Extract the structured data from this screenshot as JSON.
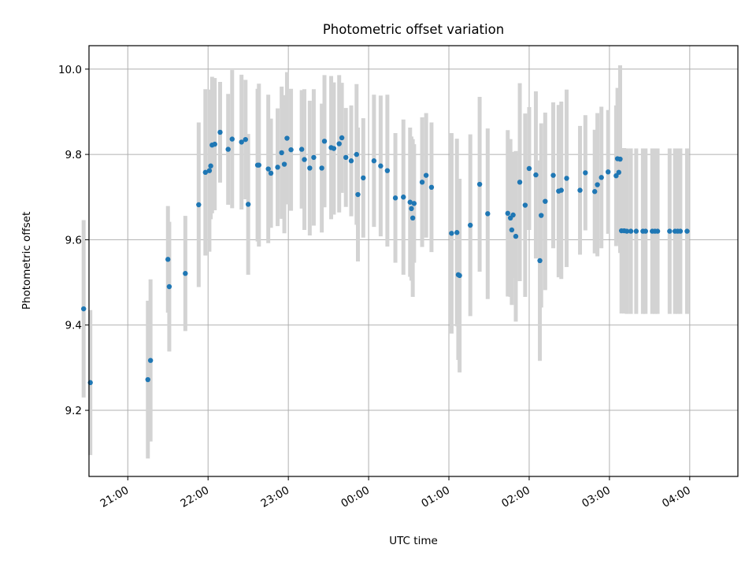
{
  "chart_data": {
    "type": "scatter",
    "title": "Photometric offset variation",
    "xlabel": "UTC time",
    "ylabel": "Photometric offset",
    "xlim": [
      "20:31",
      "04:36"
    ],
    "ylim": [
      9.045,
      10.055
    ],
    "xticks": [
      "21:00",
      "22:00",
      "23:00",
      "00:00",
      "01:00",
      "02:00",
      "03:00",
      "04:00"
    ],
    "yticks": [
      9.2,
      9.4,
      9.6,
      9.8,
      10.0
    ],
    "ytick_labels": [
      "9.2",
      "9.4",
      "9.6",
      "9.8",
      "10.0"
    ],
    "grid": true,
    "colors": {
      "point": "#1f77b4",
      "errorbar": "#d3d3d3",
      "grid": "#b0b0b0"
    },
    "series": [
      {
        "x": [
          "20:27",
          "20:32",
          "21:15",
          "21:17",
          "21:30",
          "21:31",
          "21:43",
          "21:53",
          "21:58",
          "22:01",
          "22:02",
          "22:03",
          "22:05",
          "22:09",
          "22:15",
          "22:18",
          "22:25",
          "22:28",
          "22:30",
          "22:37",
          "22:38",
          "22:45",
          "22:47",
          "22:52",
          "22:55",
          "22:57",
          "22:59",
          "23:02",
          "23:10",
          "23:12",
          "23:16",
          "23:19",
          "23:25",
          "23:27",
          "23:32",
          "23:34",
          "23:38",
          "23:40",
          "23:43",
          "23:47",
          "23:51",
          "23:52",
          "23:56",
          "00:04",
          "00:09",
          "00:14",
          "00:20",
          "00:26",
          "00:31",
          "00:32",
          "00:33",
          "00:34",
          "00:40",
          "00:43",
          "00:47",
          "01:02",
          "01:06",
          "01:07",
          "01:08",
          "01:16",
          "01:23",
          "01:29",
          "01:44",
          "01:46",
          "01:47",
          "01:48",
          "01:50",
          "01:53",
          "01:57",
          "02:00",
          "02:05",
          "02:08",
          "02:09",
          "02:12",
          "02:18",
          "02:22",
          "02:24",
          "02:28",
          "02:38",
          "02:42",
          "02:49",
          "02:51",
          "02:54",
          "02:59",
          "03:05",
          "03:06",
          "03:07",
          "03:08",
          "03:09",
          "03:11",
          "03:13",
          "03:16",
          "03:20",
          "03:25",
          "03:27",
          "03:32",
          "03:34",
          "03:36",
          "03:45",
          "03:49",
          "03:51",
          "03:53",
          "03:58"
        ],
        "y": [
          9.438,
          9.265,
          9.272,
          9.317,
          9.554,
          9.49,
          9.521,
          9.682,
          9.758,
          9.762,
          9.773,
          9.822,
          9.824,
          9.852,
          9.812,
          9.836,
          9.829,
          9.835,
          9.683,
          9.775,
          9.775,
          9.766,
          9.756,
          9.77,
          9.804,
          9.777,
          9.838,
          9.811,
          9.812,
          9.788,
          9.768,
          9.793,
          9.768,
          9.831,
          9.816,
          9.814,
          9.825,
          9.839,
          9.793,
          9.785,
          9.8,
          9.706,
          9.745,
          9.785,
          9.773,
          9.762,
          9.698,
          9.7,
          9.688,
          9.673,
          9.651,
          9.685,
          9.735,
          9.751,
          9.723,
          9.615,
          9.617,
          9.518,
          9.516,
          9.634,
          9.73,
          9.661,
          9.662,
          9.651,
          9.623,
          9.658,
          9.608,
          9.735,
          9.681,
          9.767,
          9.752,
          9.551,
          9.657,
          9.69,
          9.751,
          9.714,
          9.716,
          9.744,
          9.716,
          9.757,
          9.713,
          9.729,
          9.746,
          9.759,
          9.75,
          9.79,
          9.758,
          9.789,
          9.621,
          9.621,
          9.62,
          9.62,
          9.62,
          9.62,
          9.62,
          9.62,
          9.62,
          9.62,
          9.62,
          9.62,
          9.62,
          9.62,
          9.62
        ],
        "err": [
          0.208,
          0.17,
          0.185,
          0.19,
          0.125,
          0.152,
          0.135,
          0.193,
          0.195,
          0.19,
          0.125,
          0.16,
          0.155,
          0.118,
          0.13,
          0.162,
          0.158,
          0.14,
          0.165,
          0.179,
          0.191,
          0.174,
          0.128,
          0.138,
          0.155,
          0.162,
          0.155,
          0.143,
          0.139,
          0.165,
          0.158,
          0.16,
          0.151,
          0.155,
          0.168,
          0.155,
          0.161,
          0.129,
          0.116,
          0.13,
          0.165,
          0.157,
          0.14,
          0.155,
          0.165,
          0.178,
          0.152,
          0.182,
          0.175,
          0.169,
          0.185,
          0.139,
          0.152,
          0.146,
          0.152,
          0.235,
          0.22,
          0.2,
          0.227,
          0.213,
          0.205,
          0.2,
          0.195,
          0.185,
          0.176,
          0.148,
          0.2,
          0.232,
          0.215,
          0.144,
          0.196,
          0.235,
          0.216,
          0.208,
          0.171,
          0.202,
          0.208,
          0.208,
          0.151,
          0.135,
          0.145,
          0.168,
          0.166,
          0.145,
          0.165,
          0.166,
          0.164,
          0.22,
          0.194,
          0.194,
          0.194,
          0.194,
          0.194,
          0.194,
          0.194,
          0.194,
          0.194,
          0.194,
          0.194,
          0.194,
          0.194,
          0.194,
          0.194
        ]
      }
    ]
  }
}
